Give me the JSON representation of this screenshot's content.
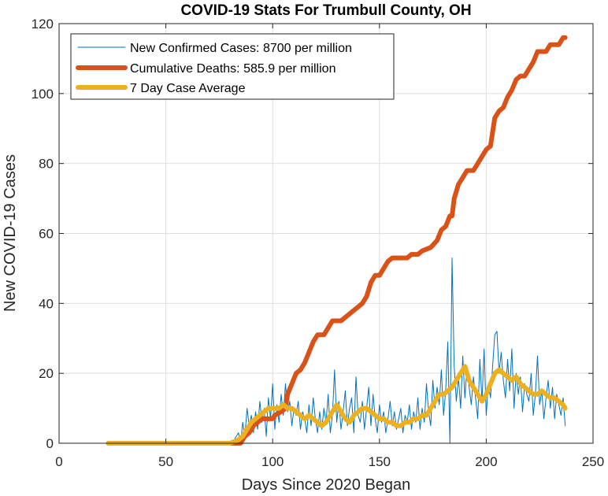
{
  "chart_data": {
    "type": "line",
    "title": "COVID-19 Stats For Trumbull County, OH",
    "xlabel": "Days Since 2020 Began",
    "ylabel": "New COVID-19 Cases",
    "xlim": [
      0,
      250
    ],
    "ylim": [
      0,
      120
    ],
    "xticks": [
      0,
      50,
      100,
      150,
      200,
      250
    ],
    "yticks": [
      0,
      20,
      40,
      60,
      80,
      100,
      120
    ],
    "grid": true,
    "legend_position": "top-left",
    "series": [
      {
        "name": "New Confirmed Cases: 8700 per million",
        "color": "#0072BD",
        "points": [
          [
            23,
            0
          ],
          [
            30,
            0
          ],
          [
            40,
            0
          ],
          [
            50,
            0
          ],
          [
            60,
            0
          ],
          [
            70,
            0
          ],
          [
            78,
            0
          ],
          [
            82,
            1
          ],
          [
            84,
            3
          ],
          [
            85,
            0
          ],
          [
            86,
            6
          ],
          [
            87,
            2
          ],
          [
            88,
            10
          ],
          [
            89,
            5
          ],
          [
            90,
            8
          ],
          [
            91,
            3
          ],
          [
            92,
            9
          ],
          [
            93,
            4
          ],
          [
            94,
            12
          ],
          [
            95,
            6
          ],
          [
            96,
            10
          ],
          [
            97,
            2
          ],
          [
            98,
            13
          ],
          [
            99,
            7
          ],
          [
            100,
            17
          ],
          [
            101,
            4
          ],
          [
            102,
            11
          ],
          [
            103,
            6
          ],
          [
            104,
            14
          ],
          [
            105,
            8
          ],
          [
            106,
            17
          ],
          [
            107,
            9
          ],
          [
            108,
            12
          ],
          [
            109,
            5
          ],
          [
            110,
            10
          ],
          [
            111,
            8
          ],
          [
            112,
            12
          ],
          [
            113,
            4
          ],
          [
            114,
            9
          ],
          [
            115,
            7
          ],
          [
            116,
            3
          ],
          [
            117,
            11
          ],
          [
            118,
            5
          ],
          [
            119,
            13
          ],
          [
            120,
            7
          ],
          [
            121,
            3
          ],
          [
            122,
            9
          ],
          [
            123,
            4
          ],
          [
            124,
            10
          ],
          [
            125,
            6
          ],
          [
            126,
            14
          ],
          [
            127,
            3
          ],
          [
            128,
            8
          ],
          [
            129,
            21
          ],
          [
            130,
            6
          ],
          [
            131,
            12
          ],
          [
            132,
            4
          ],
          [
            133,
            9
          ],
          [
            134,
            15
          ],
          [
            135,
            5
          ],
          [
            136,
            10
          ],
          [
            137,
            13
          ],
          [
            138,
            3
          ],
          [
            139,
            19
          ],
          [
            140,
            8
          ],
          [
            141,
            6
          ],
          [
            142,
            12
          ],
          [
            143,
            4
          ],
          [
            144,
            10
          ],
          [
            145,
            16
          ],
          [
            146,
            5
          ],
          [
            147,
            14
          ],
          [
            148,
            7
          ],
          [
            149,
            3
          ],
          [
            150,
            11
          ],
          [
            151,
            6
          ],
          [
            152,
            9
          ],
          [
            153,
            3
          ],
          [
            154,
            7
          ],
          [
            155,
            12
          ],
          [
            156,
            5
          ],
          [
            157,
            9
          ],
          [
            158,
            4
          ],
          [
            159,
            7
          ],
          [
            160,
            10
          ],
          [
            161,
            3
          ],
          [
            162,
            8
          ],
          [
            163,
            6
          ],
          [
            164,
            11
          ],
          [
            165,
            4
          ],
          [
            166,
            9
          ],
          [
            167,
            6
          ],
          [
            168,
            13
          ],
          [
            169,
            4
          ],
          [
            170,
            10
          ],
          [
            171,
            6
          ],
          [
            172,
            17
          ],
          [
            173,
            9
          ],
          [
            174,
            5
          ],
          [
            175,
            18
          ],
          [
            176,
            10
          ],
          [
            177,
            16
          ],
          [
            178,
            11
          ],
          [
            179,
            21
          ],
          [
            180,
            8
          ],
          [
            181,
            15
          ],
          [
            182,
            29
          ],
          [
            183,
            0
          ],
          [
            184,
            53
          ],
          [
            185,
            22
          ],
          [
            186,
            12
          ],
          [
            187,
            19
          ],
          [
            188,
            10
          ],
          [
            189,
            25
          ],
          [
            190,
            13
          ],
          [
            191,
            22
          ],
          [
            192,
            16
          ],
          [
            193,
            11
          ],
          [
            194,
            19
          ],
          [
            195,
            13
          ],
          [
            196,
            7
          ],
          [
            197,
            24
          ],
          [
            198,
            12
          ],
          [
            199,
            27
          ],
          [
            200,
            8
          ],
          [
            201,
            17
          ],
          [
            202,
            13
          ],
          [
            203,
            22
          ],
          [
            204,
            31
          ],
          [
            205,
            32
          ],
          [
            206,
            20
          ],
          [
            207,
            26
          ],
          [
            208,
            18
          ],
          [
            209,
            13
          ],
          [
            210,
            24
          ],
          [
            211,
            15
          ],
          [
            212,
            27
          ],
          [
            213,
            10
          ],
          [
            214,
            20
          ],
          [
            215,
            14
          ],
          [
            216,
            19
          ],
          [
            217,
            9
          ],
          [
            218,
            17
          ],
          [
            219,
            14
          ],
          [
            220,
            12
          ],
          [
            221,
            20
          ],
          [
            222,
            8
          ],
          [
            223,
            14
          ],
          [
            224,
            25
          ],
          [
            225,
            11
          ],
          [
            226,
            15
          ],
          [
            227,
            7
          ],
          [
            228,
            13
          ],
          [
            229,
            18
          ],
          [
            230,
            10
          ],
          [
            231,
            16
          ],
          [
            232,
            7
          ],
          [
            233,
            14
          ],
          [
            234,
            11
          ],
          [
            235,
            8
          ],
          [
            236,
            13
          ],
          [
            237,
            5
          ]
        ]
      },
      {
        "name": "Cumulative Deaths: 585.9 per million",
        "color": "#D95319",
        "points": [
          [
            23,
            0
          ],
          [
            40,
            0
          ],
          [
            60,
            0
          ],
          [
            80,
            0
          ],
          [
            85,
            0
          ],
          [
            87,
            2
          ],
          [
            89,
            3
          ],
          [
            91,
            5
          ],
          [
            93,
            6
          ],
          [
            95,
            7
          ],
          [
            100,
            7
          ],
          [
            101,
            8
          ],
          [
            104,
            9
          ],
          [
            106,
            10
          ],
          [
            107,
            14
          ],
          [
            109,
            17
          ],
          [
            111,
            20
          ],
          [
            113,
            21
          ],
          [
            115,
            23
          ],
          [
            117,
            26
          ],
          [
            119,
            29
          ],
          [
            121,
            31
          ],
          [
            124,
            31
          ],
          [
            126,
            33
          ],
          [
            128,
            35
          ],
          [
            132,
            35
          ],
          [
            134,
            36
          ],
          [
            136,
            37
          ],
          [
            138,
            38
          ],
          [
            140,
            39
          ],
          [
            142,
            40
          ],
          [
            144,
            42
          ],
          [
            146,
            46
          ],
          [
            148,
            48
          ],
          [
            150,
            48
          ],
          [
            152,
            50
          ],
          [
            154,
            52
          ],
          [
            156,
            53
          ],
          [
            163,
            53
          ],
          [
            165,
            54
          ],
          [
            168,
            54
          ],
          [
            170,
            55
          ],
          [
            174,
            56
          ],
          [
            177,
            58
          ],
          [
            179,
            61
          ],
          [
            181,
            62
          ],
          [
            183,
            65
          ],
          [
            184,
            65
          ],
          [
            185,
            70
          ],
          [
            187,
            74
          ],
          [
            189,
            76
          ],
          [
            191,
            78
          ],
          [
            194,
            78
          ],
          [
            196,
            80
          ],
          [
            198,
            82
          ],
          [
            200,
            84
          ],
          [
            202,
            85
          ],
          [
            204,
            93
          ],
          [
            206,
            95
          ],
          [
            208,
            96
          ],
          [
            210,
            99
          ],
          [
            212,
            101
          ],
          [
            214,
            104
          ],
          [
            216,
            105
          ],
          [
            218,
            105
          ],
          [
            220,
            107
          ],
          [
            222,
            109
          ],
          [
            224,
            112
          ],
          [
            228,
            112
          ],
          [
            230,
            114
          ],
          [
            234,
            114
          ],
          [
            236,
            116
          ],
          [
            237,
            116
          ]
        ]
      },
      {
        "name": "7 Day Case Average",
        "color": "#EDB120",
        "points": [
          [
            23,
            0
          ],
          [
            40,
            0
          ],
          [
            60,
            0
          ],
          [
            80,
            0
          ],
          [
            84,
            1
          ],
          [
            86,
            2
          ],
          [
            88,
            4
          ],
          [
            90,
            6
          ],
          [
            92,
            7
          ],
          [
            94,
            8
          ],
          [
            96,
            9
          ],
          [
            98,
            10
          ],
          [
            100,
            10
          ],
          [
            103,
            10
          ],
          [
            105,
            11
          ],
          [
            107,
            10
          ],
          [
            109,
            10
          ],
          [
            111,
            9
          ],
          [
            113,
            8
          ],
          [
            115,
            7
          ],
          [
            117,
            8
          ],
          [
            119,
            7
          ],
          [
            121,
            6
          ],
          [
            123,
            5
          ],
          [
            125,
            6
          ],
          [
            127,
            8
          ],
          [
            129,
            10
          ],
          [
            130,
            11
          ],
          [
            132,
            9
          ],
          [
            134,
            7
          ],
          [
            136,
            6
          ],
          [
            138,
            8
          ],
          [
            140,
            9
          ],
          [
            142,
            10
          ],
          [
            144,
            10
          ],
          [
            146,
            9
          ],
          [
            148,
            8
          ],
          [
            150,
            7
          ],
          [
            152,
            7
          ],
          [
            154,
            6
          ],
          [
            156,
            6
          ],
          [
            158,
            5
          ],
          [
            160,
            5
          ],
          [
            162,
            6
          ],
          [
            164,
            6
          ],
          [
            166,
            7
          ],
          [
            168,
            7
          ],
          [
            170,
            8
          ],
          [
            172,
            8
          ],
          [
            174,
            10
          ],
          [
            176,
            12
          ],
          [
            178,
            14
          ],
          [
            180,
            14
          ],
          [
            182,
            15
          ],
          [
            184,
            16
          ],
          [
            186,
            18
          ],
          [
            188,
            20
          ],
          [
            190,
            22
          ],
          [
            192,
            18
          ],
          [
            194,
            16
          ],
          [
            196,
            14
          ],
          [
            198,
            12
          ],
          [
            200,
            14
          ],
          [
            202,
            17
          ],
          [
            204,
            20
          ],
          [
            206,
            21
          ],
          [
            208,
            20
          ],
          [
            210,
            19
          ],
          [
            212,
            18
          ],
          [
            214,
            19
          ],
          [
            216,
            17
          ],
          [
            218,
            16
          ],
          [
            220,
            15
          ],
          [
            222,
            14
          ],
          [
            224,
            14
          ],
          [
            226,
            15
          ],
          [
            228,
            14
          ],
          [
            230,
            13
          ],
          [
            232,
            13
          ],
          [
            234,
            12
          ],
          [
            236,
            11
          ],
          [
            237,
            10
          ]
        ]
      }
    ]
  }
}
